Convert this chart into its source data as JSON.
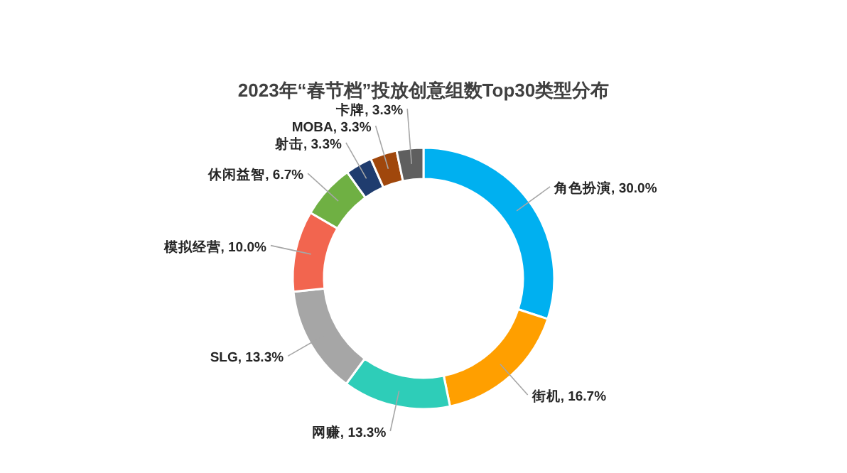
{
  "chart_data": {
    "type": "donut",
    "title": "2023年“春节档”投放创意组数Top30类型分布",
    "categories": [
      "角色扮演",
      "街机",
      "网赚",
      "SLG",
      "模拟经营",
      "休闲益智",
      "射击",
      "MOBA",
      "卡牌"
    ],
    "values": [
      30.0,
      16.7,
      13.3,
      13.3,
      10.0,
      6.7,
      3.3,
      3.3,
      3.3
    ],
    "value_labels": [
      "30.0%",
      "16.7%",
      "13.3%",
      "13.3%",
      "10.0%",
      "6.7%",
      "3.3%",
      "3.3%",
      "3.3%"
    ],
    "colors": [
      "#00b0f0",
      "#ff9f00",
      "#2ecdb8",
      "#a6a6a6",
      "#f2654f",
      "#6fb043",
      "#1f3c6e",
      "#a0470c",
      "#5f5f5f"
    ],
    "legend": false
  }
}
